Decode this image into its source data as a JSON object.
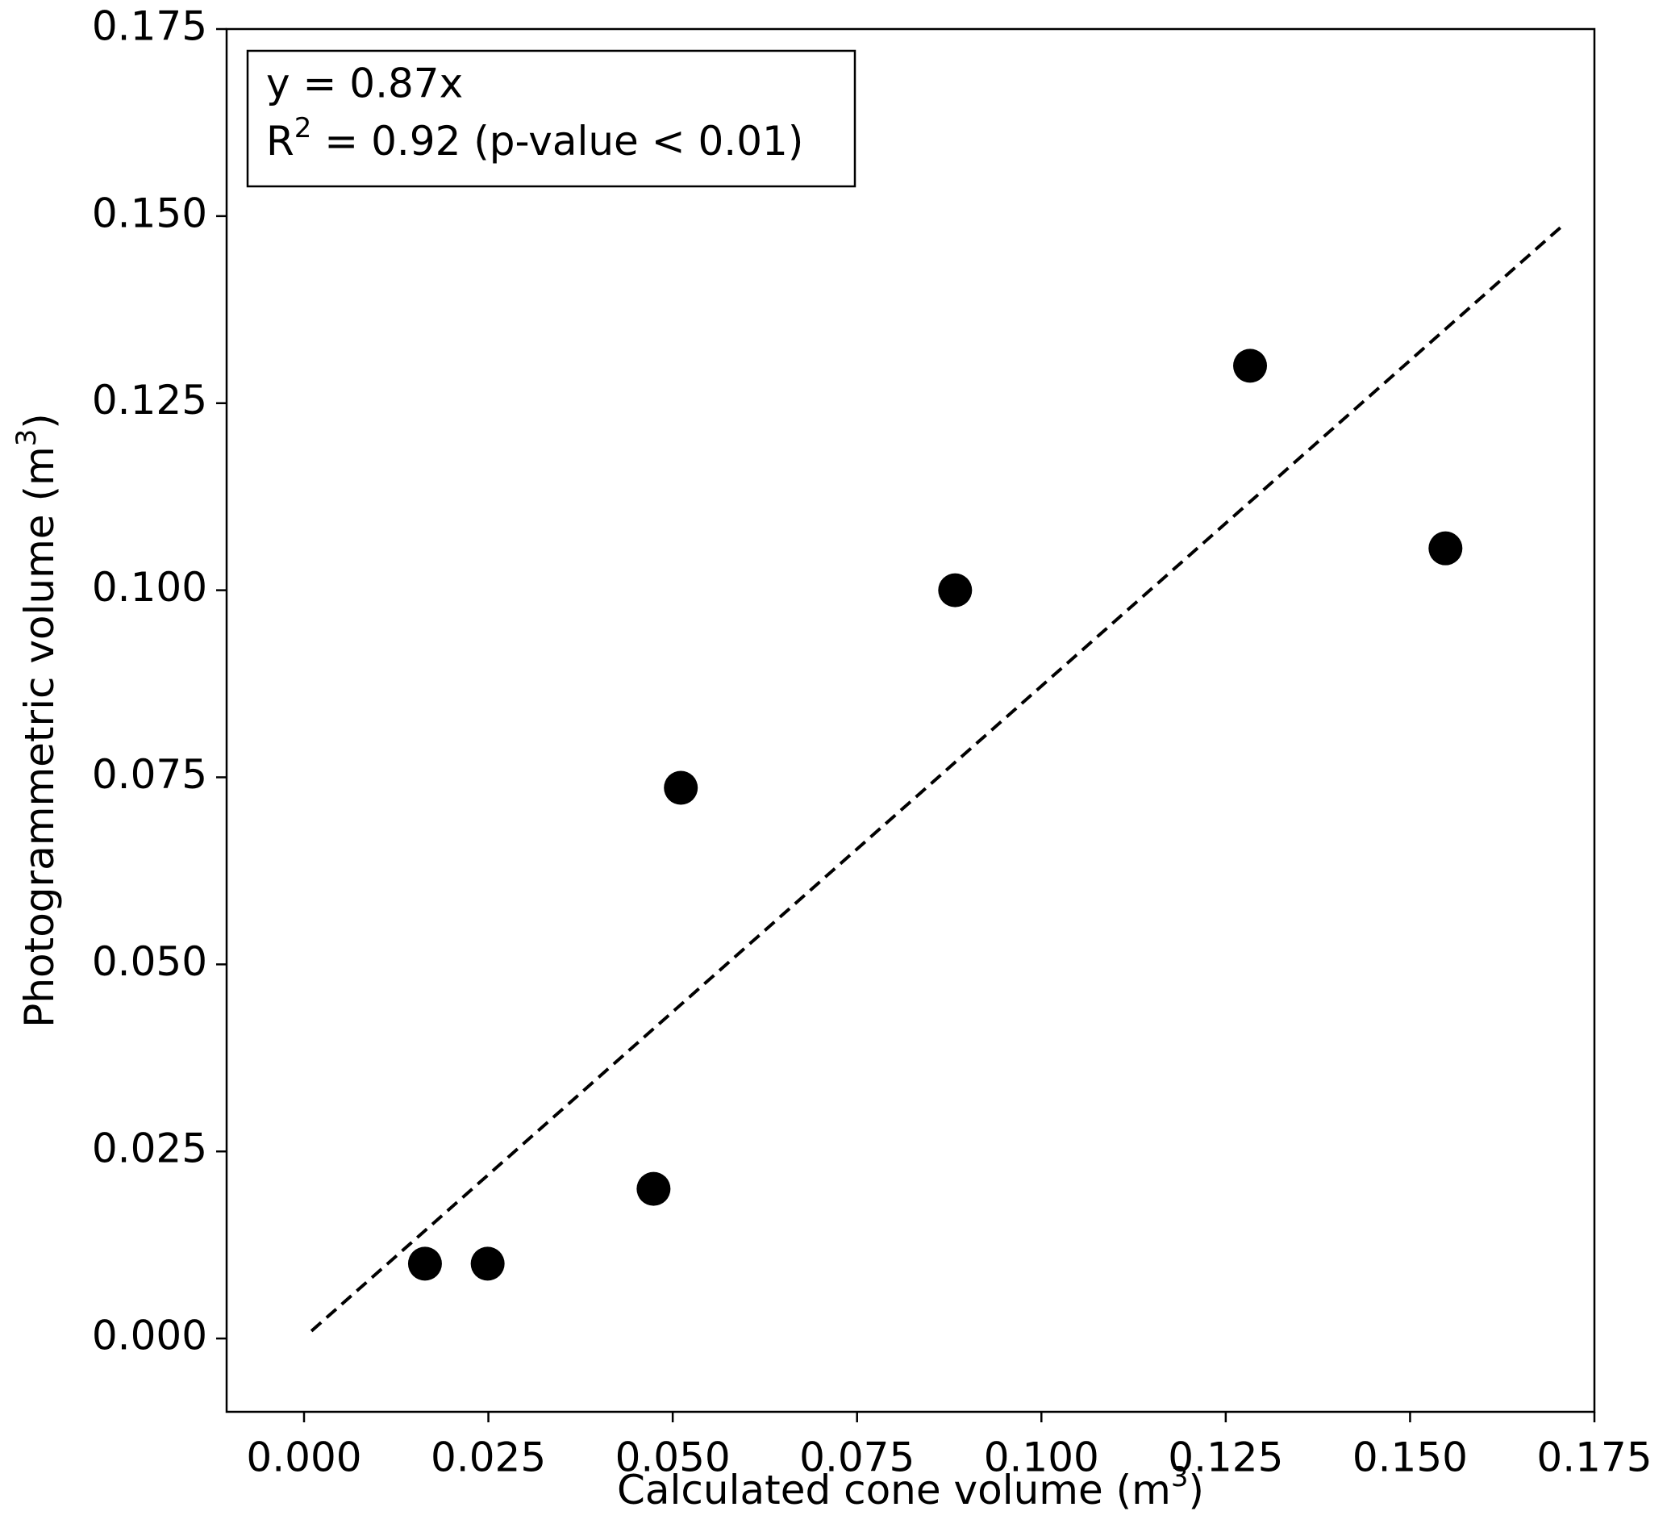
{
  "chart_data": {
    "type": "scatter",
    "xlabel": [
      "Calculated cone volume (m",
      "3",
      ")"
    ],
    "ylabel": [
      "Photogrammetric volume (m",
      "3",
      ")"
    ],
    "annotation": {
      "line1": "y = 0.87x",
      "line2": [
        "R",
        "2",
        " = 0.92 (p-value < 0.01)"
      ]
    },
    "series": [
      {
        "color": "#000000",
        "x": [
          0.0164,
          0.0249,
          0.0474,
          0.0511,
          0.0883,
          0.1283,
          0.1548
        ],
        "values": [
          0.01,
          0.01,
          0.02,
          0.0736,
          0.1,
          0.13,
          0.1056
        ]
      }
    ],
    "fit": {
      "x": [
        0.001,
        0.171
      ],
      "y": [
        0.001,
        0.149
      ],
      "color": "#000000",
      "dashed": true
    },
    "xlim": [
      -0.0105,
      0.175
    ],
    "ylim": [
      -0.0098,
      0.175
    ],
    "xticks": [
      {
        "value": 0,
        "label": "0.000"
      },
      0.025,
      {
        "value": 0.05,
        "label": "0.050"
      },
      0.075,
      {
        "value": 0.1,
        "label": "0.100"
      },
      0.125,
      {
        "value": 0.15,
        "label": "0.150"
      },
      0.175
    ],
    "yticks": [
      {
        "value": 0,
        "label": "0.000"
      },
      0.025,
      {
        "value": 0.05,
        "label": "0.050"
      },
      0.075,
      {
        "value": 0.1,
        "label": "0.100"
      },
      0.125,
      {
        "value": 0.15,
        "label": "0.150"
      },
      0.175
    ],
    "grid": false
  }
}
